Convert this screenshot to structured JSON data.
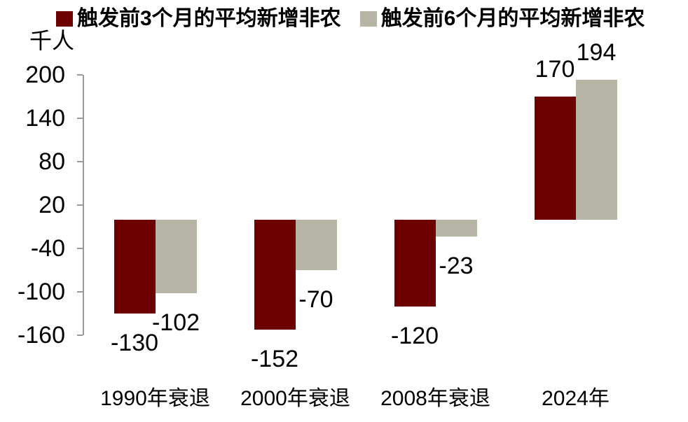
{
  "legend": {
    "items": [
      {
        "label": "触发前3个月的平均新增非农",
        "color": "#6d0001"
      },
      {
        "label": "触发前6个月的平均新增非农",
        "color": "#b6b5a6"
      }
    ]
  },
  "axes": {
    "unit_label": "千人",
    "y_ticks": [
      200,
      140,
      80,
      20,
      -40,
      -100,
      -160
    ]
  },
  "chart_data": {
    "type": "bar",
    "title": "",
    "categories": [
      "1990年衰退",
      "2000年衰退",
      "2008年衰退",
      "2024年"
    ],
    "series": [
      {
        "name": "触发前3个月的平均新增非农",
        "color": "#6d0001",
        "values": [
          -130,
          -152,
          -120,
          170
        ]
      },
      {
        "name": "触发前6个月的平均新增非农",
        "color": "#b6b5a6",
        "values": [
          -102,
          -70,
          -23,
          194
        ]
      }
    ],
    "ylabel": "千人",
    "ylim": [
      -160,
      200
    ],
    "grid": false,
    "legend_position": "top",
    "data_labels": true
  },
  "colors": {
    "axis": "#9a9a9a",
    "text": "#000000",
    "background": "#ffffff"
  }
}
